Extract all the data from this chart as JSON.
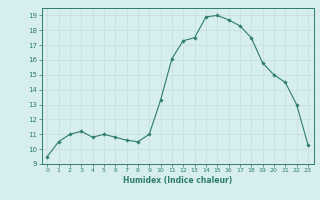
{
  "x": [
    0,
    1,
    2,
    3,
    4,
    5,
    6,
    7,
    8,
    9,
    10,
    11,
    12,
    13,
    14,
    15,
    16,
    17,
    18,
    19,
    20,
    21,
    22,
    23
  ],
  "y": [
    9.5,
    10.5,
    11.0,
    11.2,
    10.8,
    11.0,
    10.8,
    10.6,
    10.5,
    11.0,
    13.3,
    16.1,
    17.3,
    17.5,
    18.9,
    19.0,
    18.7,
    18.3,
    17.5,
    15.8,
    15.0,
    14.5,
    13.0,
    10.3
  ],
  "xlim": [
    -0.5,
    23.5
  ],
  "ylim": [
    9,
    19.5
  ],
  "yticks": [
    9,
    10,
    11,
    12,
    13,
    14,
    15,
    16,
    17,
    18,
    19
  ],
  "xticks": [
    0,
    1,
    2,
    3,
    4,
    5,
    6,
    7,
    8,
    9,
    10,
    11,
    12,
    13,
    14,
    15,
    16,
    17,
    18,
    19,
    20,
    21,
    22,
    23
  ],
  "xlabel": "Humidex (Indice chaleur)",
  "line_color": "#2e7d6e",
  "marker": "D",
  "marker_size": 1.8,
  "bg_color": "#d6eeee",
  "grid_color": "#c8dede",
  "title": ""
}
